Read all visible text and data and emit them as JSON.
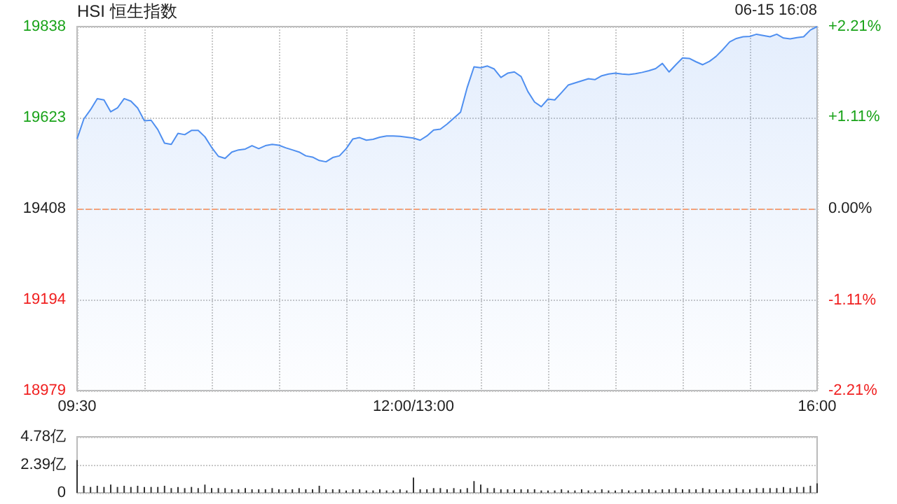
{
  "chart_data": [
    {
      "type": "area",
      "title": "HSI 恒生指数",
      "annotations": [
        "06-15 16:08"
      ],
      "marker": "none",
      "grid": true,
      "categories": [
        "09:30",
        null,
        null,
        null,
        null,
        null,
        null,
        null,
        null,
        null,
        null,
        null,
        null,
        null,
        null,
        null,
        null,
        null,
        null,
        null,
        null,
        null,
        null,
        null,
        null,
        null,
        null,
        null,
        null,
        null,
        null,
        null,
        null,
        null,
        null,
        null,
        null,
        null,
        null,
        null,
        null,
        null,
        null,
        null,
        null,
        null,
        null,
        null,
        null,
        null,
        "12:00/13:00",
        null,
        null,
        null,
        null,
        null,
        null,
        null,
        null,
        null,
        null,
        null,
        null,
        null,
        null,
        null,
        null,
        null,
        null,
        null,
        null,
        null,
        null,
        null,
        null,
        null,
        null,
        null,
        null,
        null,
        null,
        null,
        null,
        null,
        null,
        null,
        null,
        null,
        null,
        null,
        null,
        null,
        null,
        null,
        null,
        null,
        null,
        null,
        null,
        null,
        null,
        null,
        null,
        null,
        null,
        null,
        null,
        null,
        null,
        null,
        "16:00"
      ],
      "ylim": [
        18979,
        19838
      ],
      "yticks": [
        18979,
        19194,
        19408,
        19623,
        19838
      ],
      "y2lim": [
        -2.21,
        2.21
      ],
      "y2ticks": [
        {
          "value": -2.21,
          "label": "-2.21%"
        },
        {
          "value": -1.11,
          "label": "-1.11%"
        },
        {
          "value": 0,
          "label": "0.00%"
        },
        {
          "value": 1.11,
          "label": "+1.11%"
        },
        {
          "value": 2.21,
          "label": "+2.21%"
        }
      ],
      "ref_lines": [
        {
          "axis": "y",
          "value": 19408,
          "color": "#f4a27a",
          "line_style": "dashed"
        }
      ],
      "series": [
        {
          "color": "#4f8ff0",
          "values": [
            19573,
            19620,
            19642,
            19668,
            19665,
            19637,
            19646,
            19668,
            19662,
            19646,
            19616,
            19617,
            19595,
            19563,
            19560,
            19586,
            19583,
            19593,
            19593,
            19578,
            19553,
            19532,
            19527,
            19542,
            19547,
            19549,
            19557,
            19550,
            19557,
            19560,
            19558,
            19552,
            19547,
            19542,
            19533,
            19530,
            19522,
            19519,
            19529,
            19533,
            19550,
            19573,
            19576,
            19570,
            19572,
            19577,
            19580,
            19580,
            19579,
            19577,
            19575,
            19570,
            19580,
            19594,
            19596,
            19608,
            19622,
            19636,
            19695,
            19743,
            19741,
            19745,
            19738,
            19718,
            19728,
            19731,
            19720,
            19685,
            19660,
            19649,
            19667,
            19665,
            19682,
            19700,
            19705,
            19710,
            19715,
            19713,
            19722,
            19726,
            19728,
            19726,
            19725,
            19727,
            19730,
            19734,
            19739,
            19751,
            19731,
            19748,
            19764,
            19763,
            19755,
            19748,
            19756,
            19768,
            19784,
            19802,
            19810,
            19814,
            19815,
            19820,
            19817,
            19814,
            19820,
            19811,
            19809,
            19812,
            19814,
            19830,
            19838
          ]
        }
      ]
    },
    {
      "type": "bar",
      "grid": "y",
      "tick_labels": "y",
      "categories": [
        null,
        null,
        null,
        null,
        null,
        null,
        null,
        null,
        null,
        null,
        null,
        null,
        null,
        null,
        null,
        null,
        null,
        null,
        null,
        null,
        null,
        null,
        null,
        null,
        null,
        null,
        null,
        null,
        null,
        null,
        null,
        null,
        null,
        null,
        null,
        null,
        null,
        null,
        null,
        null,
        null,
        null,
        null,
        null,
        null,
        null,
        null,
        null,
        null,
        null,
        null,
        null,
        null,
        null,
        null,
        null,
        null,
        null,
        null,
        null,
        null,
        null,
        null,
        null,
        null,
        null,
        null,
        null,
        null,
        null,
        null,
        null,
        null,
        null,
        null,
        null,
        null,
        null,
        null,
        null,
        null,
        null,
        null,
        null,
        null,
        null,
        null,
        null,
        null,
        null,
        null,
        null,
        null,
        null,
        null,
        null,
        null,
        null,
        null,
        null,
        null,
        null,
        null,
        null,
        null,
        null,
        null,
        null,
        null,
        null,
        null
      ],
      "ylim": [
        0,
        4.78
      ],
      "yticks": [
        0,
        {
          "value": 2.39,
          "label": "2.39亿"
        },
        {
          "value": 4.78,
          "label": "4.78亿"
        }
      ],
      "series": [
        {
          "color": "#333333",
          "values": [
            2.8,
            0.6,
            0.5,
            0.6,
            0.5,
            0.7,
            0.5,
            0.6,
            0.5,
            0.6,
            0.5,
            0.5,
            0.5,
            0.6,
            0.4,
            0.5,
            0.4,
            0.5,
            0.4,
            0.7,
            0.4,
            0.4,
            0.4,
            0.3,
            0.3,
            0.4,
            0.3,
            0.3,
            0.3,
            0.4,
            0.3,
            0.3,
            0.3,
            0.4,
            0.3,
            0.3,
            0.6,
            0.3,
            0.3,
            0.3,
            0.2,
            0.3,
            0.3,
            0.2,
            0.2,
            0.3,
            0.2,
            0.2,
            0.3,
            0.2,
            1.3,
            0.3,
            0.3,
            0.4,
            0.4,
            0.3,
            0.4,
            0.3,
            0.4,
            1.0,
            0.7,
            0.4,
            0.4,
            0.3,
            0.3,
            0.3,
            0.3,
            0.3,
            0.3,
            0.2,
            0.2,
            0.2,
            0.3,
            0.2,
            0.2,
            0.3,
            0.2,
            0.2,
            0.3,
            0.2,
            0.2,
            0.3,
            0.2,
            0.2,
            0.3,
            0.3,
            0.2,
            0.3,
            0.3,
            0.4,
            0.3,
            0.3,
            0.3,
            0.4,
            0.3,
            0.3,
            0.3,
            0.3,
            0.4,
            0.3,
            0.3,
            0.4,
            0.4,
            0.4,
            0.4,
            0.5,
            0.4,
            0.5,
            0.5,
            0.6,
            0.8
          ]
        }
      ]
    }
  ]
}
